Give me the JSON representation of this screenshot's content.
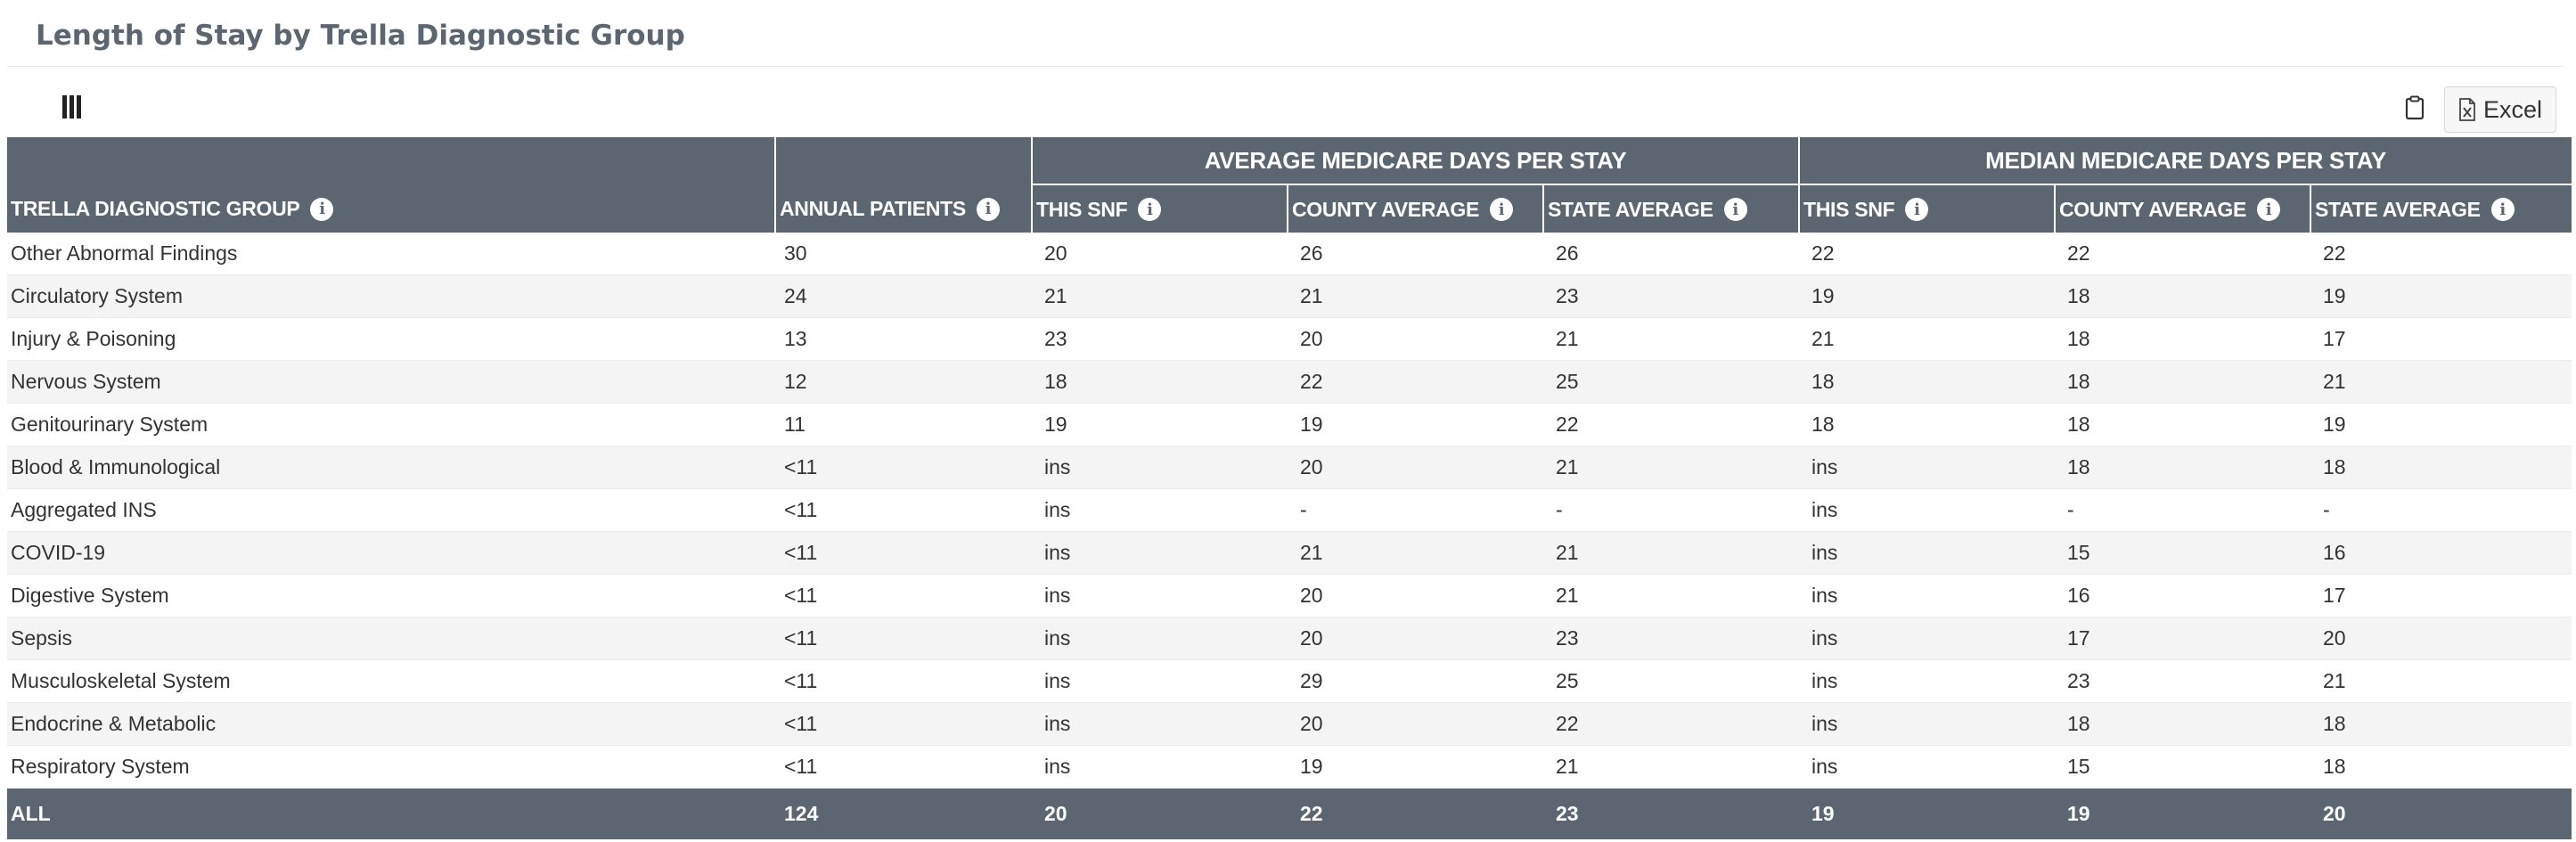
{
  "page": {
    "title": "Length of Stay by Trella Diagnostic Group"
  },
  "toolbar": {
    "excel_label": "Excel",
    "columns_icon": "columns-icon",
    "clipboard_icon": "clipboard-icon"
  },
  "table": {
    "groups": {
      "average": "AVERAGE MEDICARE DAYS PER STAY",
      "median": "MEDIAN MEDICARE DAYS PER STAY"
    },
    "columns": [
      "TRELLA DIAGNOSTIC GROUP",
      "ANNUAL PATIENTS",
      "THIS SNF",
      "COUNTY AVERAGE",
      "STATE AVERAGE",
      "THIS SNF",
      "COUNTY AVERAGE",
      "STATE AVERAGE"
    ],
    "rows": [
      [
        "Other Abnormal Findings",
        "30",
        "20",
        "26",
        "26",
        "22",
        "22",
        "22"
      ],
      [
        "Circulatory System",
        "24",
        "21",
        "21",
        "23",
        "19",
        "18",
        "19"
      ],
      [
        "Injury & Poisoning",
        "13",
        "23",
        "20",
        "21",
        "21",
        "18",
        "17"
      ],
      [
        "Nervous System",
        "12",
        "18",
        "22",
        "25",
        "18",
        "18",
        "21"
      ],
      [
        "Genitourinary System",
        "11",
        "19",
        "19",
        "22",
        "18",
        "18",
        "19"
      ],
      [
        "Blood & Immunological",
        "<11",
        "ins",
        "20",
        "21",
        "ins",
        "18",
        "18"
      ],
      [
        "Aggregated INS",
        "<11",
        "ins",
        "-",
        "-",
        "ins",
        "-",
        "-"
      ],
      [
        "COVID-19",
        "<11",
        "ins",
        "21",
        "21",
        "ins",
        "15",
        "16"
      ],
      [
        "Digestive System",
        "<11",
        "ins",
        "20",
        "21",
        "ins",
        "16",
        "17"
      ],
      [
        "Sepsis",
        "<11",
        "ins",
        "20",
        "23",
        "ins",
        "17",
        "20"
      ],
      [
        "Musculoskeletal System",
        "<11",
        "ins",
        "29",
        "25",
        "ins",
        "23",
        "21"
      ],
      [
        "Endocrine & Metabolic",
        "<11",
        "ins",
        "20",
        "22",
        "ins",
        "18",
        "18"
      ],
      [
        "Respiratory System",
        "<11",
        "ins",
        "19",
        "21",
        "ins",
        "15",
        "18"
      ]
    ],
    "footer": [
      "ALL",
      "124",
      "20",
      "22",
      "23",
      "19",
      "19",
      "20"
    ]
  },
  "colors": {
    "header_bg": "#5b6670",
    "row_alt": "#f4f4f4",
    "title": "#5b6670"
  }
}
